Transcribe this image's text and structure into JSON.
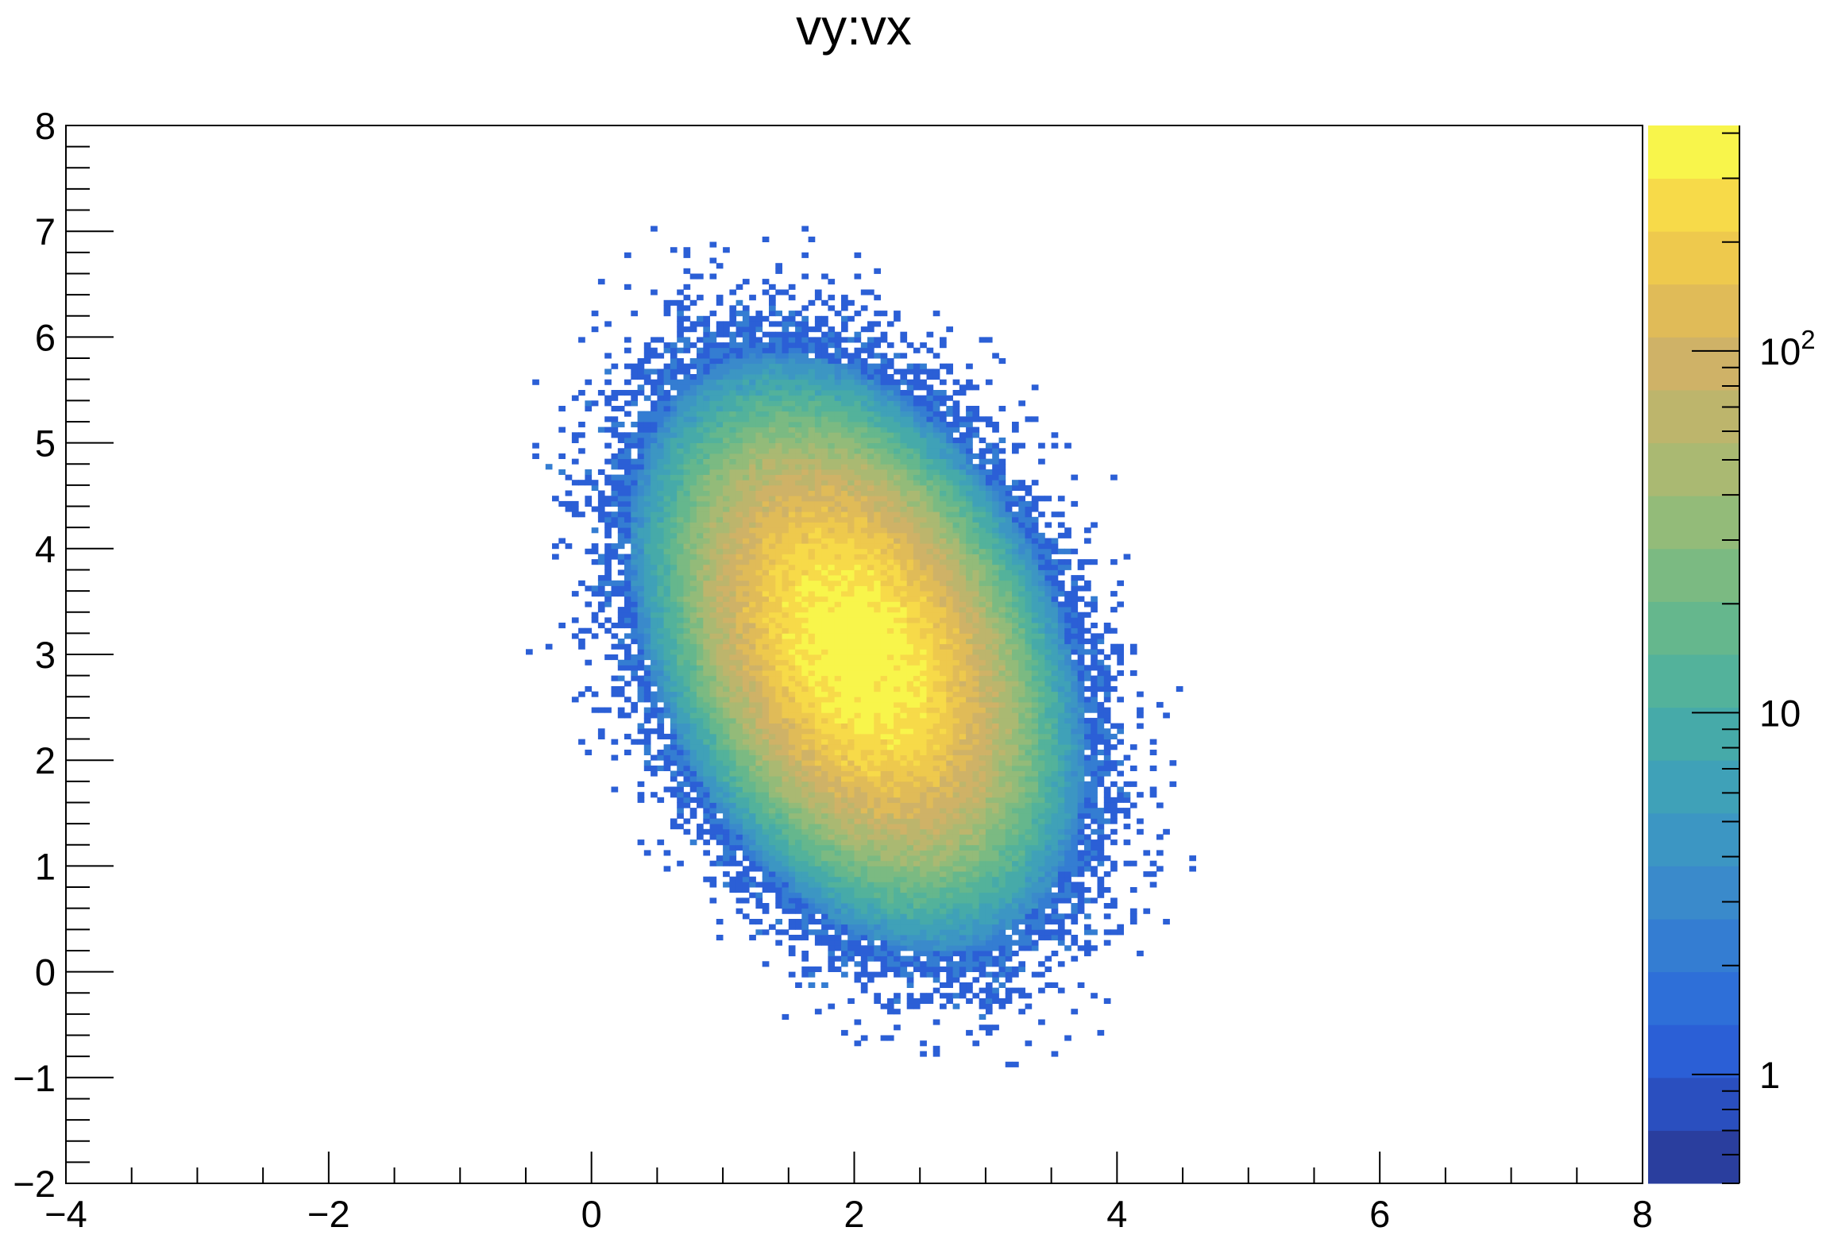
{
  "chart_data": {
    "type": "heatmap",
    "title": "vy:vx",
    "xlabel": "",
    "ylabel": "",
    "xlim": [
      -4,
      8
    ],
    "ylim": [
      -2,
      8
    ],
    "x_ticks": [
      -4,
      -2,
      0,
      2,
      4,
      6,
      8
    ],
    "x_tick_labels": [
      "−4",
      "−2",
      "0",
      "2",
      "4",
      "6",
      "8"
    ],
    "y_ticks": [
      -2,
      -1,
      0,
      1,
      2,
      3,
      4,
      5,
      6,
      7,
      8
    ],
    "y_tick_labels": [
      "−2",
      "−1",
      "0",
      "1",
      "2",
      "3",
      "4",
      "5",
      "6",
      "7",
      "8"
    ],
    "z_scale": "log",
    "z_range": [
      0.5,
      420
    ],
    "colorbar": {
      "tick_labels": [
        "1",
        "10",
        "10²"
      ],
      "tick_values": [
        1,
        10,
        100
      ],
      "colors": [
        "#2a3e9e",
        "#2a4fbf",
        "#2b5fd6",
        "#2e6fd8",
        "#347dd2",
        "#3a8acb",
        "#3c96c3",
        "#3fa1b8",
        "#46aaa9",
        "#53b29b",
        "#65b78d",
        "#7bba82",
        "#93bb79",
        "#aab972",
        "#bdb56c",
        "#cfb267",
        "#e0bb58",
        "#eec94d",
        "#f7da49",
        "#f8f54b"
      ]
    },
    "distribution": {
      "kind": "2d-gaussian",
      "mean": [
        2.0,
        3.0
      ],
      "sigma_x": 0.55,
      "sigma_y": 0.9,
      "correlation": -0.35,
      "peak_count": 420,
      "x_bin_width": 0.05,
      "y_bin_width": 0.05
    },
    "grid": false,
    "legend": "none"
  }
}
